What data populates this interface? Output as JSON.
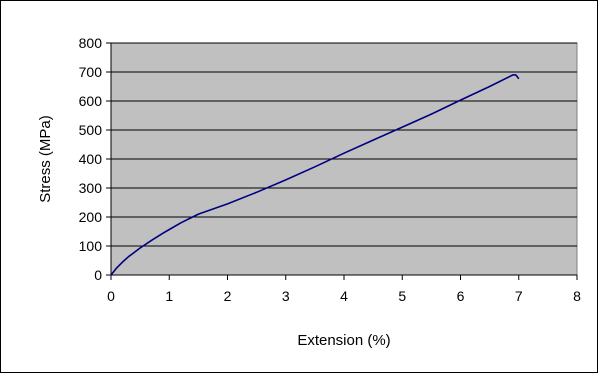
{
  "chart_data": {
    "type": "line",
    "xlabel": "Extension (%)",
    "ylabel": "Stress (MPa)",
    "xlim": [
      0,
      8
    ],
    "ylim": [
      0,
      800
    ],
    "x_ticks": [
      0,
      1,
      2,
      3,
      4,
      5,
      6,
      7,
      8
    ],
    "y_ticks": [
      0,
      100,
      200,
      300,
      400,
      500,
      600,
      700,
      800
    ],
    "grid": "horizontal",
    "legend": "none",
    "plot_background": "#c0c0c0",
    "series": [
      {
        "color": "#000080",
        "x": [
          0,
          0.1,
          0.2,
          0.3,
          0.5,
          0.7,
          0.9,
          1.0,
          1.2,
          1.5,
          2.0,
          2.5,
          3.0,
          3.5,
          4.0,
          4.5,
          5.0,
          5.5,
          6.0,
          6.5,
          6.9,
          6.95,
          7.0
        ],
        "y": [
          0,
          25,
          45,
          63,
          93,
          120,
          145,
          157,
          180,
          210,
          245,
          285,
          328,
          373,
          420,
          465,
          510,
          555,
          603,
          650,
          690,
          690,
          677
        ]
      }
    ]
  }
}
